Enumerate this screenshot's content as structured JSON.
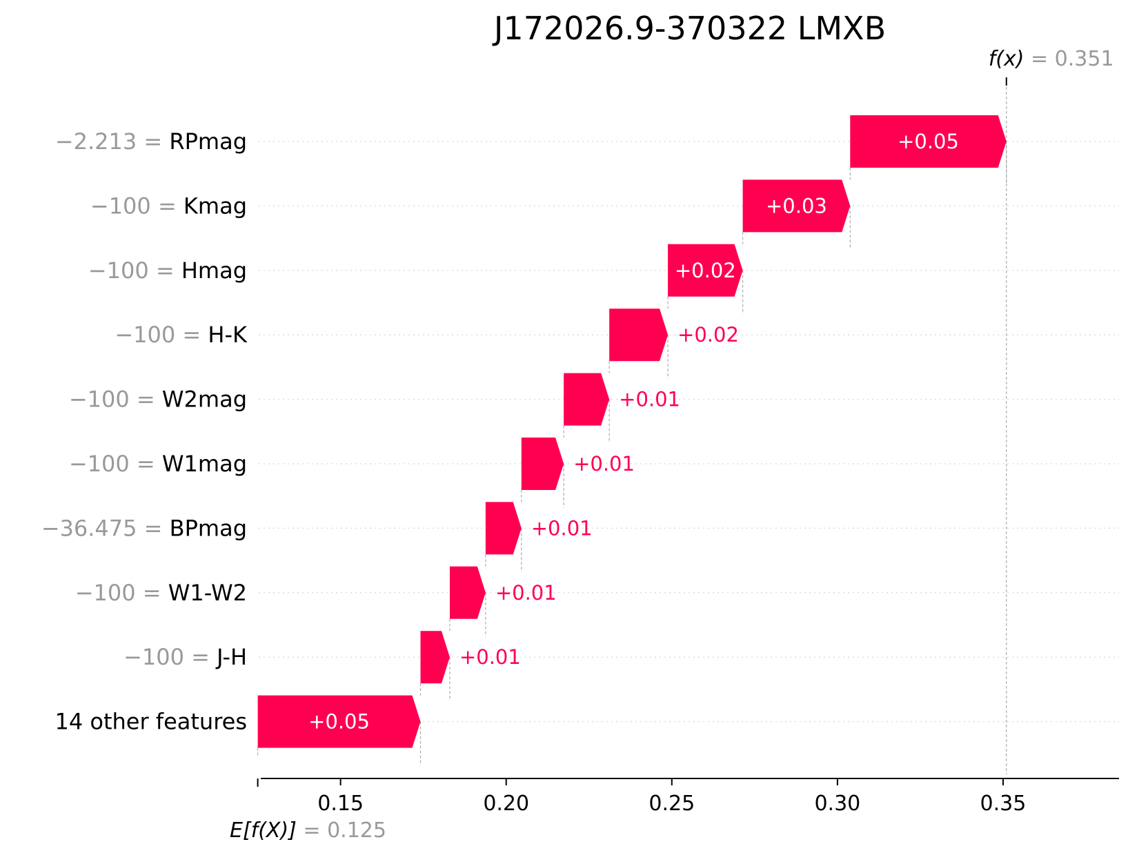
{
  "chart_data": {
    "type": "waterfall",
    "title": "J172026.9-370322 LMXB",
    "base_value": 0.125,
    "base_label_key": "E[f(X)]",
    "base_label_value": "= 0.125",
    "output_value": 0.351,
    "output_label_key": "f(x)",
    "output_label_value": "= 0.351",
    "xlim": [
      0.128,
      0.385
    ],
    "xticks": [
      {
        "value": 0.15,
        "label": "0.15"
      },
      {
        "value": 0.2,
        "label": "0.20"
      },
      {
        "value": 0.25,
        "label": "0.25"
      },
      {
        "value": 0.3,
        "label": "0.30"
      },
      {
        "value": 0.35,
        "label": "0.35"
      }
    ],
    "features": [
      {
        "name": "RPmag",
        "value_label": "−2.213 =",
        "shap": 0.048,
        "shap_label": "+0.05"
      },
      {
        "name": "Kmag",
        "value_label": "−100 =",
        "shap": 0.033,
        "shap_label": "+0.03"
      },
      {
        "name": "Hmag",
        "value_label": "−100 =",
        "shap": 0.023,
        "shap_label": "+0.02"
      },
      {
        "name": "H-K",
        "value_label": "−100 =",
        "shap": 0.018,
        "shap_label": "+0.02"
      },
      {
        "name": "W2mag",
        "value_label": "−100 =",
        "shap": 0.014,
        "shap_label": "+0.01"
      },
      {
        "name": "W1mag",
        "value_label": "−100 =",
        "shap": 0.013,
        "shap_label": "+0.01"
      },
      {
        "name": "BPmag",
        "value_label": "−36.475 =",
        "shap": 0.011,
        "shap_label": "+0.01"
      },
      {
        "name": "W1-W2",
        "value_label": "−100 =",
        "shap": 0.011,
        "shap_label": "+0.01"
      },
      {
        "name": "J-H",
        "value_label": "−100 =",
        "shap": 0.009,
        "shap_label": "+0.01"
      },
      {
        "name": "14 other features",
        "value_label": "",
        "shap": 0.05,
        "shap_label": "+0.05"
      }
    ],
    "colors": {
      "positive": "#ff0051",
      "value_text": "#999999",
      "guide_line": "#aaaaaa",
      "grid": "#dddddd"
    }
  }
}
